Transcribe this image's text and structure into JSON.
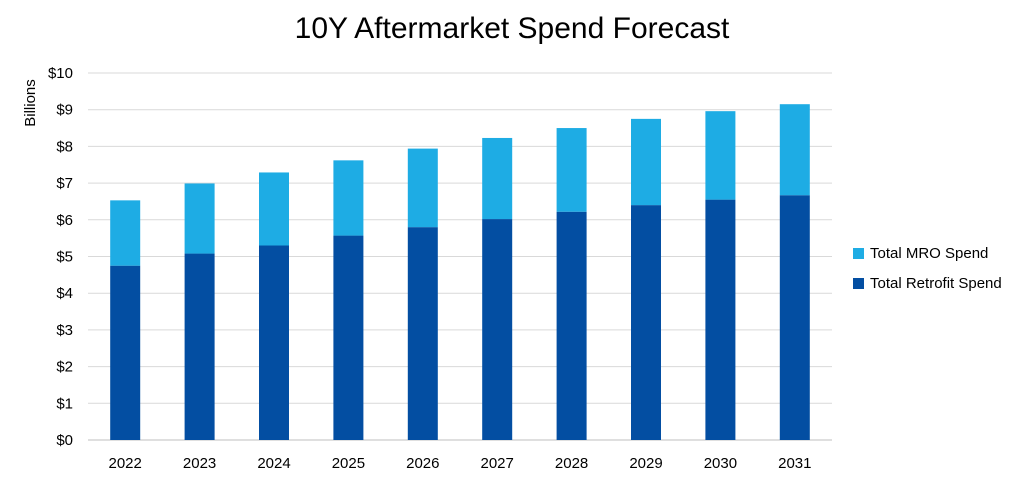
{
  "chart_data": {
    "type": "bar",
    "stacked": true,
    "title": "10Y Aftermarket Spend Forecast",
    "ylabel": "Billions",
    "xlabel": "",
    "ylim": [
      0,
      10
    ],
    "yticks": [
      "$0",
      "$1",
      "$2",
      "$3",
      "$4",
      "$5",
      "$6",
      "$7",
      "$8",
      "$9",
      "$10"
    ],
    "categories": [
      "2022",
      "2023",
      "2024",
      "2025",
      "2026",
      "2027",
      "2028",
      "2029",
      "2030",
      "2031"
    ],
    "grid": true,
    "legend_position": "right",
    "series": [
      {
        "name": "Total Retrofit Spend",
        "color": "#034ea2",
        "values": [
          4.75,
          5.08,
          5.3,
          5.57,
          5.8,
          6.02,
          6.22,
          6.4,
          6.55,
          6.67
        ]
      },
      {
        "name": "Total MRO Spend",
        "color": "#1eace4",
        "values": [
          1.78,
          1.91,
          1.99,
          2.05,
          2.14,
          2.21,
          2.28,
          2.35,
          2.41,
          2.48
        ]
      }
    ],
    "legend_order": [
      1,
      0
    ]
  }
}
